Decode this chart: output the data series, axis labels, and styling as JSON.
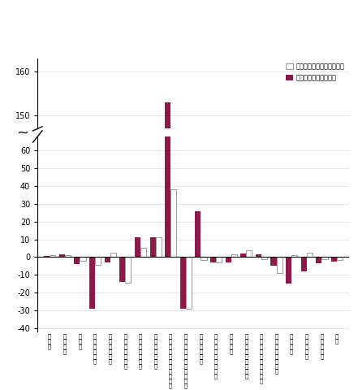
{
  "categories": [
    "近\n工\n業",
    "製\n造\n工\n業",
    "鉄\n鋼\n業",
    "非\n鉄\n金\n属\n工\n業",
    "金\n属\n製\n品\n工\n業",
    "は\nん\n用\n機\n械\n工\n業",
    "生\n産\n用\n機\n械\n工\n業",
    "高\n務\n用\n機\n械\n工\n業",
    "電\n子\n部\n品\n・\nデ\nバ\nイ\nス\n工\n業",
    "電\n気\n・\n管\n路\n通\n信\n機\n械\n工\n業",
    "輸\n送\n機\n械\n工\n業",
    "窯\n業\n・\n土\n石\n製\n品\n工\n業",
    "化\n学\n工\n業",
    "石\n油\n・\n石\n炭\n製\n品\n工\n業",
    "プ\nラ\nス\nチ\nッ\nク\n製\n品\n工\n業",
    "紙\n・\n紙\n加\n工\n品\n工\n業",
    "繊\n維\n工\n業",
    "食\n料\n品\n工\n業",
    "そ\nの\n他\n工\n業",
    "産\n業"
  ],
  "mom_values": [
    1.0,
    1.0,
    -2.0,
    -4.5,
    2.5,
    -14.5,
    5.0,
    11.0,
    38.0,
    -29.0,
    -1.5,
    -3.0,
    1.5,
    4.0,
    -1.0,
    -9.0,
    1.0,
    2.5,
    -1.0,
    -1.5
  ],
  "yoy_values": [
    0.5,
    1.5,
    -4.0,
    -29.0,
    -3.0,
    -14.0,
    11.0,
    11.0,
    153.0,
    -29.0,
    26.0,
    -3.0,
    -3.0,
    2.0,
    1.5,
    -5.0,
    -15.0,
    -8.0,
    -3.5,
    -2.5
  ],
  "mom_color": "#ffffff",
  "mom_edge_color": "#999999",
  "yoy_color": "#8b1a4a",
  "legend_mom": "前月比（季節調整済指数）",
  "legend_yoy": "前年同月比（原指数）",
  "lower_yticks": [
    -40,
    -30,
    -20,
    -10,
    0,
    10,
    20,
    30,
    40,
    50,
    60
  ],
  "upper_yticks": [
    150,
    160
  ],
  "lower_ylim": [
    -42,
    68
  ],
  "upper_ylim": [
    147,
    163
  ],
  "bar_width": 0.38,
  "fig_width": 4.41,
  "fig_height": 4.8,
  "dpi": 100
}
